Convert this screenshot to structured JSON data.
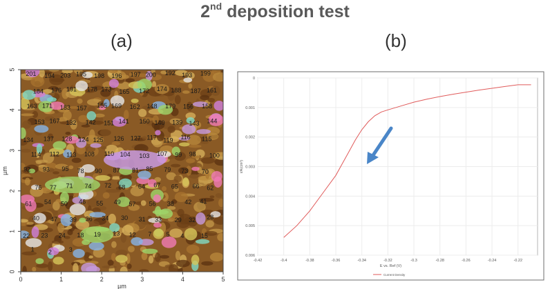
{
  "header": {
    "title_prefix": "2",
    "title_sup": "nd",
    "title_rest": " deposition test"
  },
  "panels": [
    {
      "label": "(a)"
    },
    {
      "label": "(b)"
    }
  ],
  "afm_map": {
    "x_axis_label": "µm",
    "y_axis_label": "µm",
    "x_ticks": [
      "0",
      "1",
      "2",
      "3",
      "4",
      "5"
    ],
    "y_ticks": [
      "0",
      "1",
      "2",
      "3",
      "4",
      "5"
    ],
    "grain_labels": [
      "201",
      "194",
      "203",
      "195",
      "198",
      "196",
      "197",
      "200",
      "192",
      "193",
      "199",
      "184",
      "176",
      "191",
      "178",
      "173",
      "165",
      "172",
      "174",
      "188",
      "187",
      "161",
      "163",
      "171",
      "183",
      "157",
      "155",
      "169",
      "162",
      "148",
      "179",
      "156",
      "158",
      "153",
      "167",
      "132",
      "142",
      "151",
      "141",
      "150",
      "140",
      "139",
      "143",
      "144",
      "134",
      "137",
      "128",
      "124",
      "125",
      "126",
      "127",
      "117",
      "119",
      "116",
      "115",
      "114",
      "112",
      "113",
      "108",
      "110",
      "104",
      "103",
      "107",
      "99",
      "98",
      "100",
      "92",
      "93",
      "95",
      "78",
      "90",
      "87",
      "81",
      "85",
      "79",
      "73",
      "70",
      "76",
      "77",
      "71",
      "74",
      "72",
      "68",
      "64",
      "67",
      "65",
      "66",
      "62",
      "61",
      "54",
      "50",
      "46",
      "55",
      "49",
      "57",
      "56",
      "38",
      "42",
      "41",
      "40",
      "47",
      "39",
      "36",
      "34",
      "30",
      "31",
      "33",
      "29",
      "32",
      "28",
      "22",
      "23",
      "24",
      "18",
      "19",
      "13",
      "12",
      "7",
      "5",
      "4",
      "15",
      "1",
      "2",
      "3"
    ],
    "colors": {
      "background": "#8a5a25",
      "highlight": "#d6c55a"
    }
  },
  "chart_data": {
    "type": "line",
    "x_ticks": [
      "-0.42",
      "-0.4",
      "-0.38",
      "-0.36",
      "-0.34",
      "-0.32",
      "-0.3",
      "-0.28",
      "-0.26",
      "-0.24",
      "-0.22"
    ],
    "y_ticks": [
      "0",
      "0.001",
      "0.002",
      "0.003",
      "0.004",
      "0.005",
      "0.006"
    ],
    "xlabel": "E vs. Ref (V)",
    "ylabel": "i/A(cm²)",
    "xlim": [
      -0.42,
      -0.205
    ],
    "ylim": [
      0,
      0.006
    ],
    "y_inverted": true,
    "series": [
      {
        "name": "Current Density",
        "color": "#e05a5a",
        "x": [
          -0.4,
          -0.39,
          -0.38,
          -0.37,
          -0.36,
          -0.355,
          -0.35,
          -0.345,
          -0.34,
          -0.335,
          -0.33,
          -0.325,
          -0.32,
          -0.31,
          -0.3,
          -0.29,
          -0.28,
          -0.27,
          -0.26,
          -0.25,
          -0.24,
          -0.23,
          -0.22,
          -0.21
        ],
        "y": [
          0.0054,
          0.005,
          0.0045,
          0.0039,
          0.0033,
          0.0029,
          0.0025,
          0.0021,
          0.00175,
          0.00148,
          0.00128,
          0.00115,
          0.00108,
          0.00095,
          0.00082,
          0.00072,
          0.00063,
          0.00055,
          0.00048,
          0.00041,
          0.00035,
          0.00029,
          0.00023,
          0.00023
        ]
      }
    ],
    "annotation": {
      "type": "arrow",
      "color": "#4a86c8"
    }
  }
}
